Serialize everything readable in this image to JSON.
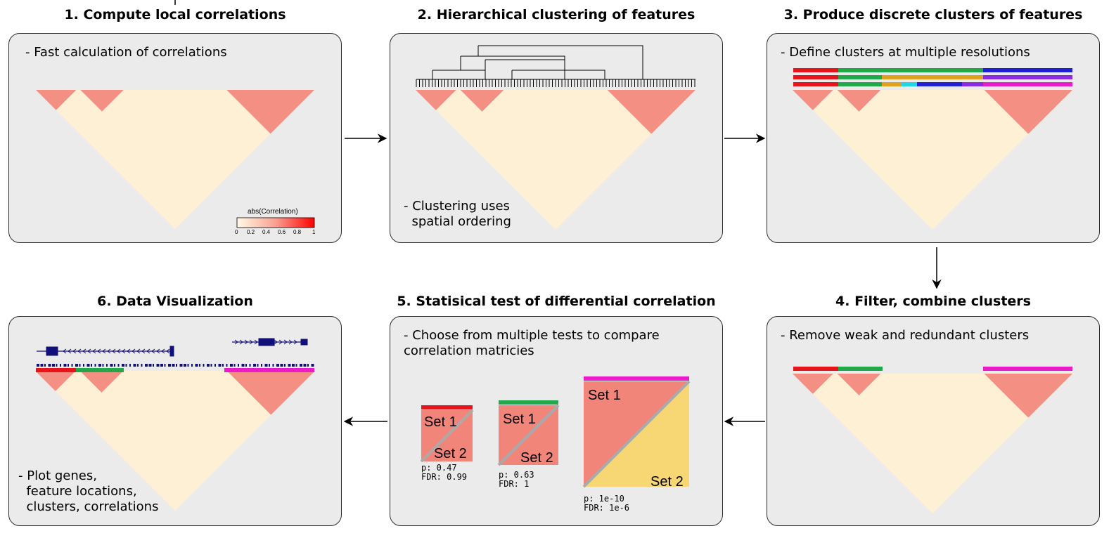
{
  "steps": {
    "s1": {
      "title": "1. Compute local correlations",
      "note": "- Fast calculation of correlations"
    },
    "s2": {
      "title": "2. Hierarchical clustering of features",
      "note": "- Clustering uses\n  spatial ordering"
    },
    "s3": {
      "title": "3. Produce discrete clusters of features",
      "note": "- Define clusters at multiple resolutions"
    },
    "s4": {
      "title": "4. Filter, combine clusters",
      "note": "- Remove weak and redundant clusters"
    },
    "s5": {
      "title": "5. Statisical test of differential correlation",
      "note": "- Choose from multiple tests to compare\ncorrelation matricies"
    },
    "s6": {
      "title": "6. Data Visualization",
      "note": "- Plot genes,\n  feature locations,\n  clusters, correlations"
    }
  },
  "legend": {
    "title": "abs(Correlation)",
    "ticks": [
      "0",
      "0.2",
      "0.4",
      "0.6",
      "0.8",
      "1"
    ]
  },
  "tests": [
    {
      "set1": "Set 1",
      "set2": "Set 2",
      "p": "p: 0.47",
      "fdr": "FDR: 0.99"
    },
    {
      "set1": "Set 1",
      "set2": "Set 2",
      "p": "p: 0.63",
      "fdr": "FDR: 1"
    },
    {
      "set1": "Set 1",
      "set2": "Set 2",
      "p": "p: 1e-10",
      "fdr": "FDR: 1e-6"
    }
  ],
  "colors": {
    "panel_bg": "#ebebeb",
    "low_corr": "#fdf0d5",
    "high_corr": "#f2857a",
    "cluster_red": "#e8141c",
    "cluster_green": "#21a84a",
    "cluster_blue": "#1f1fd6",
    "cluster_magenta": "#e81cc8",
    "cluster_orange": "#e0a020",
    "cluster_cyan": "#23d6e6",
    "cluster_purple": "#8a2be2",
    "gene_navy": "#10107a",
    "set2_yellow": "#f7d774"
  }
}
